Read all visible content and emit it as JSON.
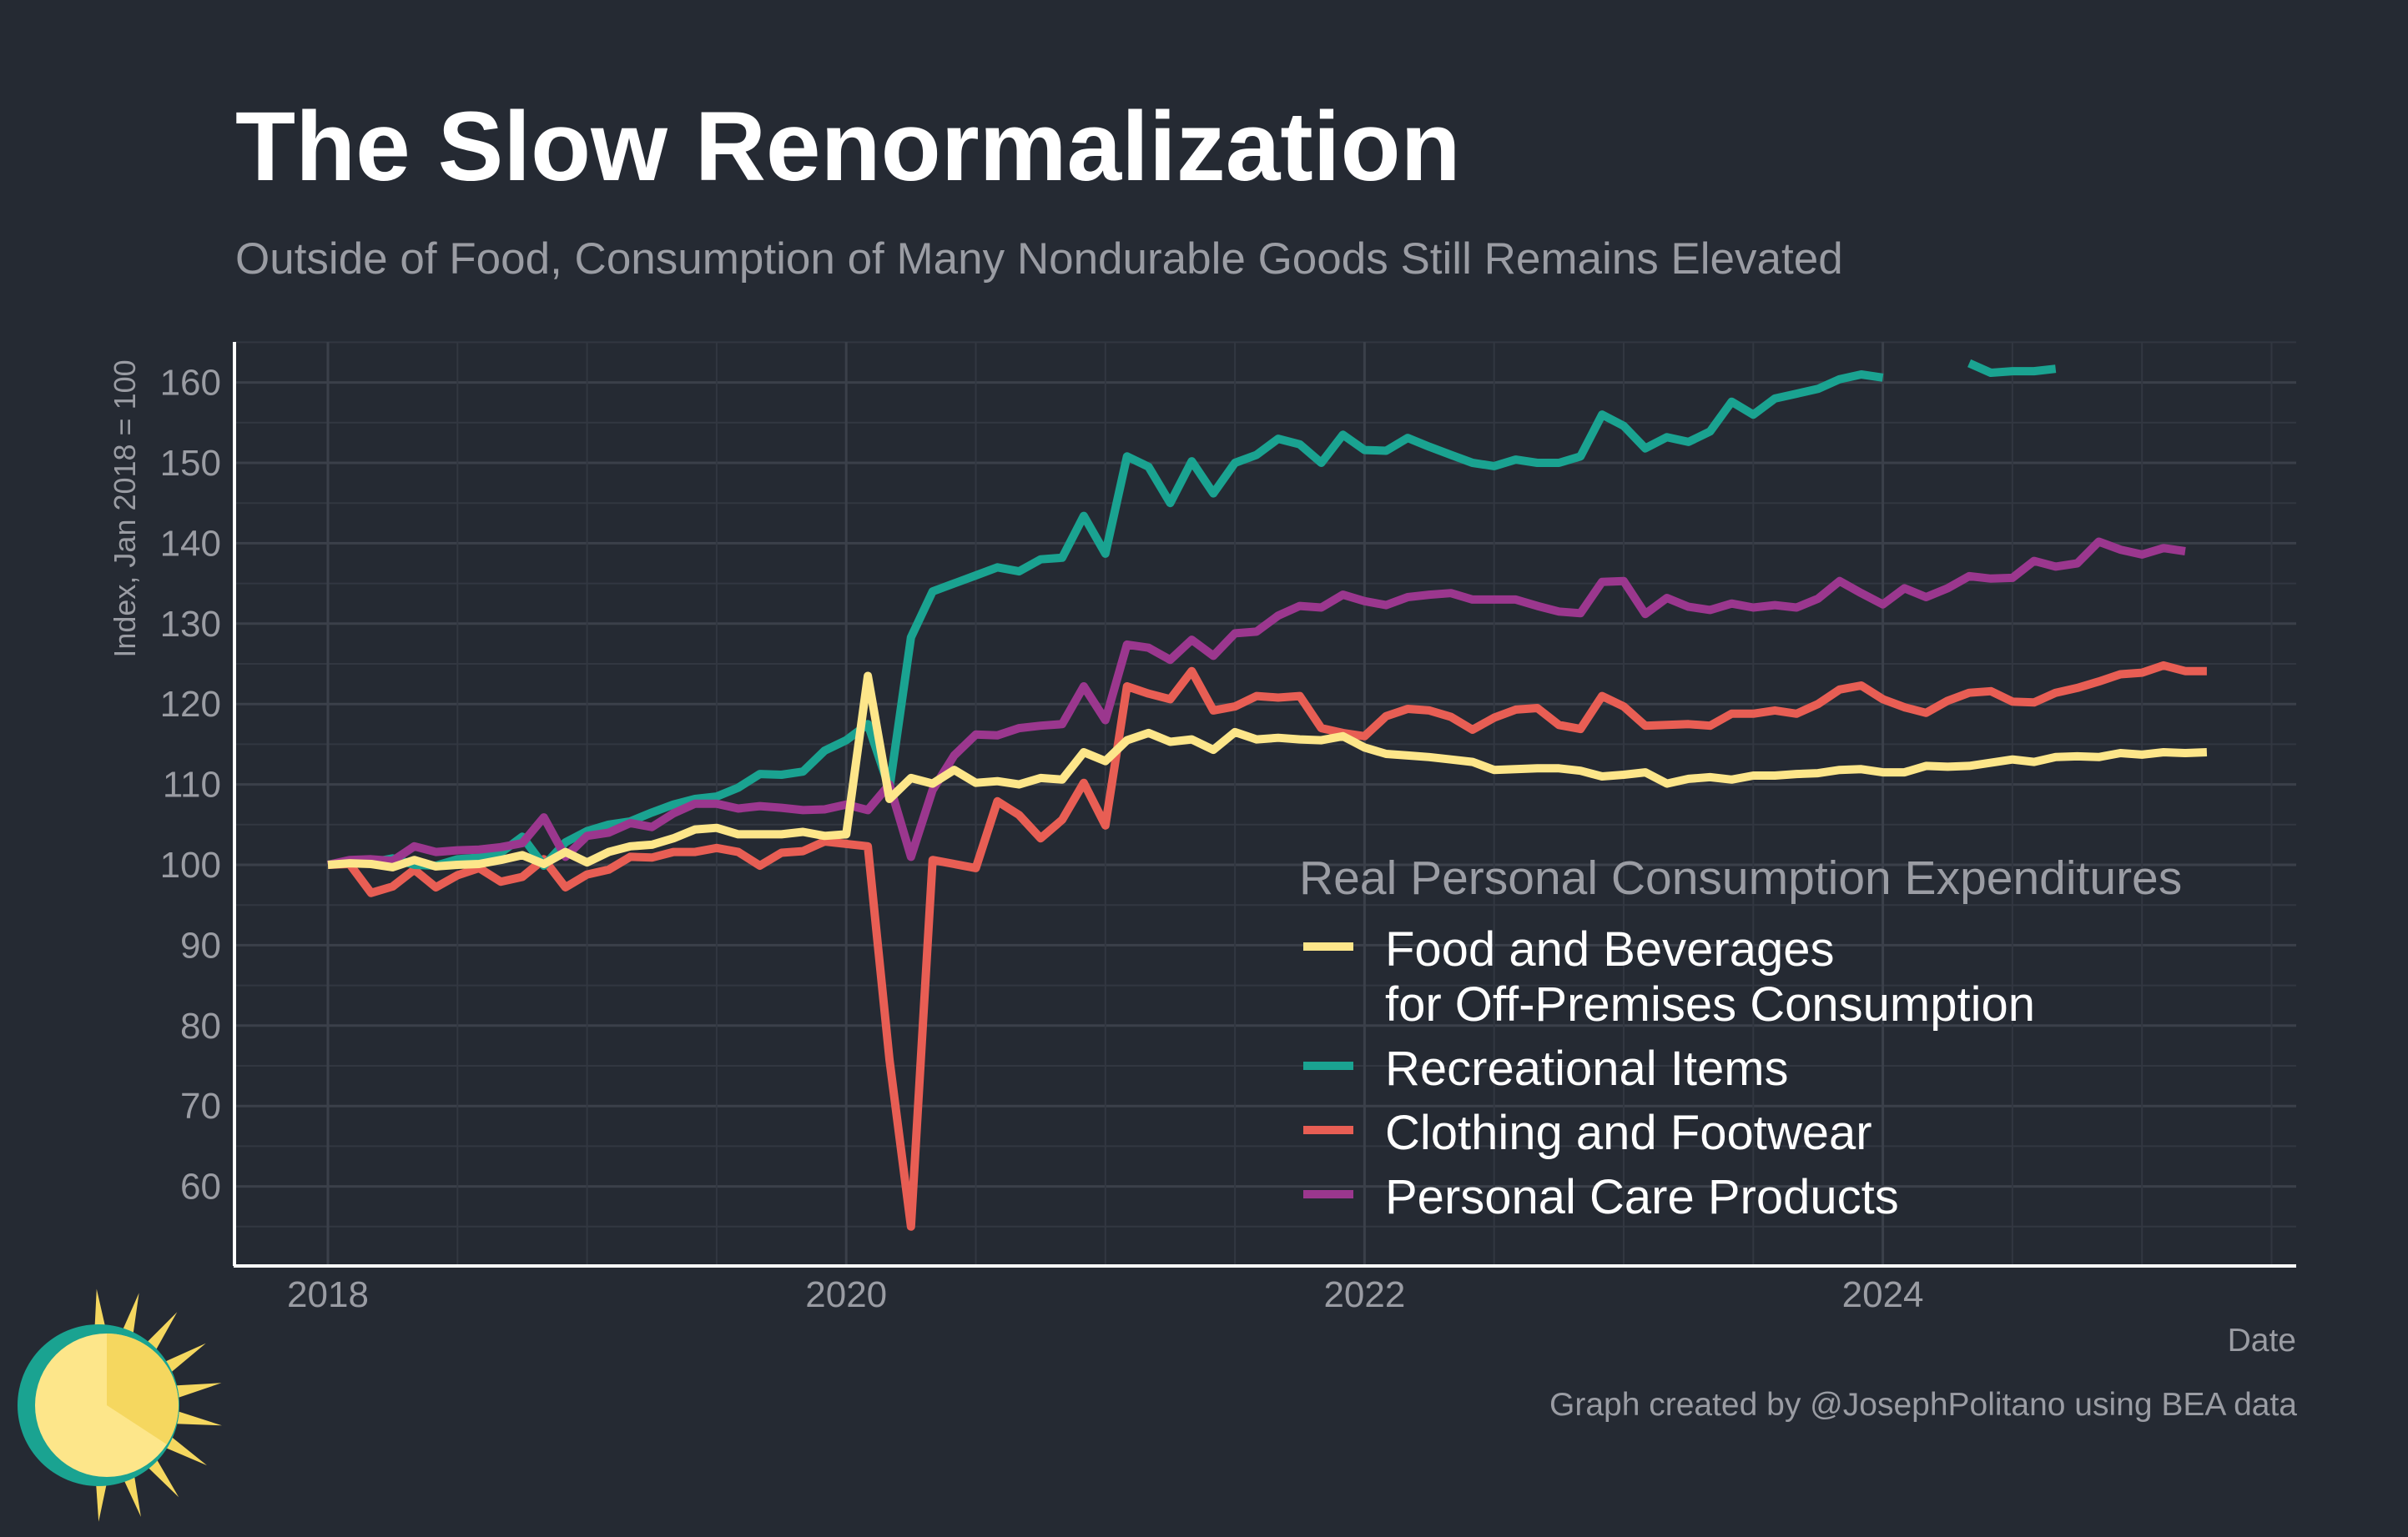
{
  "chart_data": {
    "type": "line",
    "title": "The Slow Renormalization",
    "subtitle": "Outside of Food, Consumption of Many Nondurable Goods Still Remains Elevated",
    "xlabel": "Date",
    "ylabel": "Index, Jan 2018 = 100",
    "x_ticks": [
      "2018",
      "2020",
      "2022",
      "2024"
    ],
    "y_ticks": [
      60,
      70,
      80,
      90,
      100,
      110,
      120,
      130,
      140,
      150,
      160
    ],
    "xlim": [
      "2017-08",
      "2026-01"
    ],
    "ylim": [
      50,
      165
    ],
    "grid": true,
    "legend_title": "Real Personal Consumption Expenditures",
    "legend_position": "bottom-right",
    "caption": "Graph created by @JosephPolitano using BEA data",
    "x_start": "2018-01",
    "series": [
      {
        "name": "Food and Beverages for Off-Premises Consumption",
        "legend_lines": [
          "Food and Beverages",
          "for Off-Premises Consumption"
        ],
        "color": "#fde68a",
        "values": [
          100,
          100.2,
          100.1,
          99.7,
          100.6,
          99.8,
          100,
          100.1,
          100.6,
          101.2,
          100.1,
          101.6,
          100.3,
          101.6,
          102.3,
          102.5,
          103.3,
          104.4,
          104.6,
          103.8,
          103.8,
          103.8,
          104.1,
          103.6,
          103.8,
          123.5,
          108.2,
          110.8,
          110.1,
          111.8,
          110.2,
          110.4,
          110,
          110.8,
          110.6,
          114,
          112.9,
          115.5,
          116.4,
          115.3,
          115.6,
          114.3,
          116.5,
          115.6,
          115.8,
          115.6,
          115.5,
          116,
          114.6,
          113.8,
          113.6,
          113.4,
          113.1,
          112.8,
          111.8,
          111.9,
          112,
          112,
          111.7,
          111,
          111.2,
          111.5,
          110.1,
          110.7,
          110.9,
          110.6,
          111.1,
          111.1,
          111.3,
          111.4,
          111.8,
          111.9,
          111.5,
          111.5,
          112.3,
          112.2,
          112.3,
          112.7,
          113.1,
          112.8,
          113.4,
          113.5,
          113.4,
          113.9,
          113.7,
          114,
          113.9,
          114
        ]
      },
      {
        "name": "Recreational Items",
        "legend_lines": [
          "Recreational Items"
        ],
        "color": "#1aa391",
        "values": [
          100,
          100.5,
          100.3,
          100.8,
          100,
          99.9,
          100.7,
          100.9,
          101.5,
          103.5,
          99.9,
          102.8,
          104.2,
          105,
          105.4,
          106.5,
          107.5,
          108.2,
          108.5,
          109.6,
          111.3,
          111.2,
          111.6,
          114.2,
          115.5,
          117.5,
          109.5,
          128.3,
          134,
          135,
          136,
          137,
          136.5,
          138,
          138.2,
          143.4,
          138.7,
          150.8,
          149.5,
          145,
          150.2,
          146.2,
          150,
          151,
          153,
          152.3,
          150,
          153.5,
          151.6,
          151.5,
          153.1,
          152,
          151,
          150,
          149.6,
          150.4,
          150,
          150,
          150.8,
          156,
          154.6,
          151.8,
          153.2,
          152.6,
          153.9,
          157.6,
          156,
          158,
          158.6,
          159.2,
          160.4,
          161,
          160.6,
          null,
          null,
          null,
          162.4,
          161.2,
          161.4,
          161.4,
          161.7,
          null,
          null,
          null,
          null,
          null,
          null,
          null
        ]
      },
      {
        "name": "Clothing and Footwear",
        "legend_lines": [
          "Clothing and Footwear"
        ],
        "color": "#e85e54",
        "values": [
          100,
          100.1,
          96.5,
          97.3,
          99.4,
          97.2,
          98.7,
          99.6,
          97.9,
          98.5,
          100.7,
          97.2,
          98.8,
          99.4,
          101,
          100.9,
          101.6,
          101.6,
          102.1,
          101.6,
          99.9,
          101.5,
          101.7,
          102.9,
          102.6,
          102.3,
          75.8,
          55,
          100.6,
          100.1,
          99.6,
          107.9,
          106.2,
          103.3,
          105.6,
          110.2,
          104.9,
          122.2,
          121.3,
          120.6,
          124.1,
          119.2,
          119.7,
          121,
          120.8,
          121,
          117,
          116.4,
          116,
          118.5,
          119.4,
          119.2,
          118.4,
          116.8,
          118.3,
          119.3,
          119.5,
          117.4,
          116.9,
          121,
          119.7,
          117.3,
          117.4,
          117.5,
          117.3,
          118.8,
          118.8,
          119.2,
          118.8,
          120,
          121.8,
          122.3,
          120.6,
          119.6,
          118.9,
          120.4,
          121.4,
          121.6,
          120.3,
          120.2,
          121.4,
          122,
          122.8,
          123.7,
          123.9,
          124.8,
          124.1,
          124.1
        ]
      },
      {
        "name": "Personal Care Products",
        "legend_lines": [
          "Personal Care Products"
        ],
        "color": "#9b378e",
        "values": [
          100,
          100.6,
          100.7,
          100.5,
          102.3,
          101.6,
          101.8,
          101.9,
          102.2,
          102.7,
          105.9,
          101,
          103.6,
          104,
          105.2,
          104.7,
          106.4,
          107.6,
          107.6,
          107,
          107.3,
          107.1,
          106.8,
          106.9,
          107.5,
          106.8,
          110,
          101,
          109.3,
          113.6,
          116.2,
          116.1,
          117,
          117.3,
          117.5,
          122.2,
          118,
          127.4,
          127,
          125.5,
          128,
          126,
          128.8,
          129,
          131,
          132.2,
          132,
          133.6,
          132.8,
          132.3,
          133.3,
          133.6,
          133.8,
          133,
          133,
          133,
          132.2,
          131.5,
          131.3,
          135.2,
          135.3,
          131.2,
          133.2,
          132.1,
          131.7,
          132.5,
          132,
          132.3,
          132,
          133.1,
          135.3,
          133.8,
          132.4,
          134.4,
          133.3,
          134.4,
          135.9,
          135.6,
          135.7,
          137.8,
          137.1,
          137.5,
          140.2,
          139.2,
          138.6,
          139.4,
          139
        ]
      }
    ]
  },
  "logo": {
    "icon": "sun-icon",
    "ring_color": "#1aa391",
    "face_color": "#fde68a",
    "ray_color": "#f5d75f"
  }
}
